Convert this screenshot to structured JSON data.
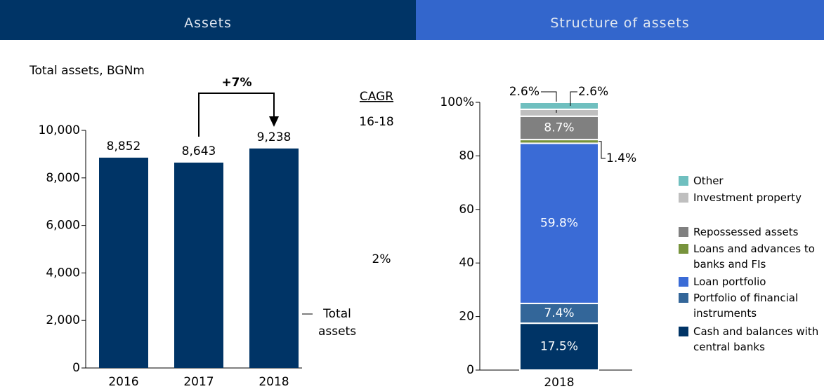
{
  "header": {
    "left": "Assets",
    "right": "Structure of assets"
  },
  "chart_data": [
    {
      "type": "bar",
      "title": "Total assets, BGNm",
      "categories": [
        "2016",
        "2017",
        "2018"
      ],
      "series": [
        {
          "name": "Total assets",
          "color": "#003466",
          "values": [
            8852,
            8643,
            9238
          ],
          "value_labels": [
            "8,852",
            "8,643",
            "9,238"
          ]
        }
      ],
      "ylim": [
        0,
        10000
      ],
      "yticks": [
        0,
        {
          "value": 2000,
          "label": "2,000"
        },
        {
          "value": 4000,
          "label": "4,000"
        },
        {
          "value": 6000,
          "label": "6,000"
        },
        {
          "value": 8000,
          "label": "8,000"
        },
        {
          "value": 10000,
          "label": "10,000"
        }
      ],
      "annotations": {
        "growth": "+7%",
        "cagr_title": "CAGR",
        "cagr_period": "16-18",
        "cagr_value": "2%"
      }
    },
    {
      "type": "stacked_bar",
      "categories": [
        "2018"
      ],
      "series": [
        {
          "name": "Cash and balances with central banks",
          "color": "#003466",
          "values": [
            17.5
          ],
          "value_labels": [
            "17.5%"
          ]
        },
        {
          "name": "Portfolio of financial instruments",
          "color": "#336699",
          "values": [
            7.4
          ],
          "value_labels": [
            "7.4%"
          ]
        },
        {
          "name": "Loan portfolio",
          "color": "#3a6bd6",
          "values": [
            59.8
          ],
          "value_labels": [
            "59.8%"
          ]
        },
        {
          "name": "Loans and advances to banks and FIs",
          "color": "#77933c",
          "values": [
            1.4
          ],
          "value_labels": [
            "1.4%"
          ]
        },
        {
          "name": "Repossessed assets",
          "color": "#808080",
          "values": [
            8.7
          ],
          "value_labels": [
            "8.7%"
          ]
        },
        {
          "name": "Investment property",
          "color": "#bfbfbf",
          "values": [
            2.6
          ],
          "value_labels": [
            "2.6%"
          ]
        },
        {
          "name": "Other",
          "color": "#6fbfbf",
          "values": [
            2.6
          ],
          "value_labels": [
            "2.6%"
          ]
        }
      ],
      "ylim": [
        0,
        100
      ],
      "yticks": [
        0,
        20,
        40,
        60,
        80,
        {
          "value": 100,
          "label": "100%"
        }
      ]
    }
  ]
}
